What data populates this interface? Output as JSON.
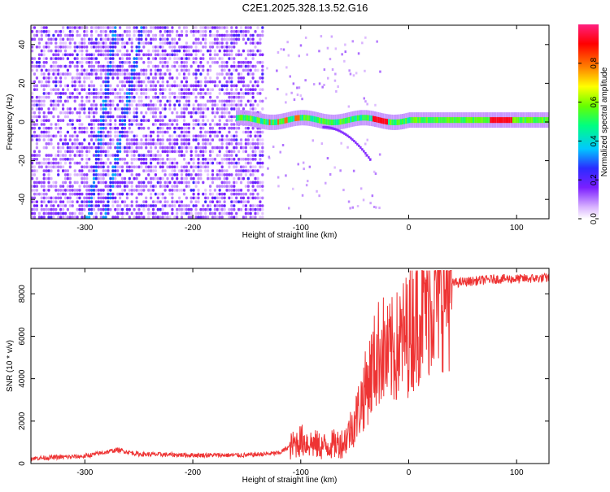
{
  "figure_title": "C2E1.2025.328.13.52.G16",
  "chart_data": [
    {
      "type": "heatmap",
      "xlabel": "Height of straight line (km)",
      "ylabel": "Frequency (Hz)",
      "xlim": [
        -350,
        130
      ],
      "ylim": [
        -50,
        50
      ],
      "x_ticks": [
        -300,
        -200,
        -100,
        0,
        100
      ],
      "y_ticks": [
        -40,
        -20,
        0,
        20,
        40
      ],
      "colorbar": {
        "label": "Normalized spectral amplitude",
        "range": [
          0,
          1
        ],
        "ticks": [
          0.0,
          0.2,
          0.4,
          0.6,
          0.8
        ],
        "colormap": [
          "#ffffff",
          "#d9b3ff",
          "#7b1fff",
          "#2b2bff",
          "#00c8ff",
          "#00ff80",
          "#66ff00",
          "#ffff00",
          "#ff8000",
          "#ff0000",
          "#ff2080"
        ]
      },
      "features": [
        {
          "description_label": "diffuse noise",
          "x_range": [
            -350,
            -135
          ],
          "freq_range": [
            -50,
            50
          ],
          "amplitude": 0.15
        },
        {
          "description_label": "carrier",
          "x_range": [
            -160,
            130
          ],
          "freq_center": 1,
          "amplitude": 0.55
        },
        {
          "description_label": "peak",
          "x_range": [
            -35,
            -20
          ],
          "freq_center": 0,
          "amplitude": 0.9
        },
        {
          "description_label": "peak",
          "x_range": [
            75,
            95
          ],
          "freq_center": 1,
          "amplitude": 0.95
        }
      ]
    },
    {
      "type": "line",
      "xlabel": "Height of straight line (km)",
      "ylabel": "SNR (10 * v/v)",
      "xlim": [
        -350,
        130
      ],
      "ylim": [
        0,
        9200
      ],
      "x_ticks": [
        -300,
        -200,
        -100,
        0,
        100
      ],
      "y_ticks": [
        0,
        2000,
        4000,
        6000,
        8000
      ],
      "color": "#ee3333",
      "series": [
        {
          "x": [
            -350,
            -300,
            -270,
            -250,
            -200,
            -150,
            -120,
            -100,
            -80,
            -60,
            -50,
            -40,
            -30,
            -25,
            -20,
            -10,
            0,
            10,
            20,
            30,
            40,
            60,
            80,
            100,
            130
          ],
          "y": [
            200,
            300,
            600,
            400,
            350,
            350,
            450,
            1100,
            800,
            1000,
            2000,
            3500,
            5000,
            5500,
            5000,
            5500,
            6200,
            7200,
            7800,
            8300,
            8500,
            8600,
            8700,
            8700,
            8750
          ]
        }
      ]
    }
  ]
}
